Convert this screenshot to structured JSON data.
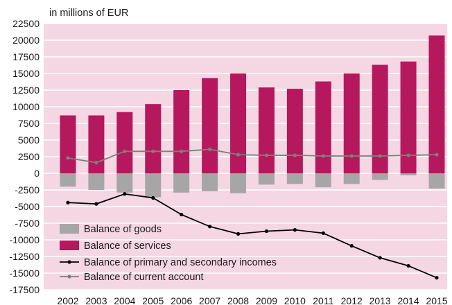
{
  "chart_data": {
    "type": "bar",
    "unit_label": "in millions of EUR",
    "categories": [
      "2002",
      "2003",
      "2004",
      "2005",
      "2006",
      "2007",
      "2008",
      "2009",
      "2010",
      "2011",
      "2012",
      "2013",
      "2014",
      "2015"
    ],
    "y_ticks": [
      "22500",
      "20000",
      "17500",
      "15000",
      "12500",
      "10000",
      "7500",
      "5000",
      "2500",
      "0",
      "-2500",
      "-5000",
      "-7500",
      "-10000",
      "-12500",
      "-15000",
      "-17500"
    ],
    "ylim": [
      -17500,
      22500
    ],
    "grid": true,
    "legend_position": "bottom-left",
    "series": [
      {
        "name": "Balance of goods",
        "kind": "bar",
        "color": "#a6a6a6",
        "values": [
          -2000,
          -2500,
          -2900,
          -3600,
          -2900,
          -2700,
          -3000,
          -1700,
          -1600,
          -2100,
          -1600,
          -1000,
          -300,
          -2300
        ]
      },
      {
        "name": "Balance of services",
        "kind": "bar",
        "color": "#b5185c",
        "values": [
          8700,
          8700,
          9200,
          10400,
          12500,
          14300,
          15000,
          12900,
          12700,
          13800,
          15000,
          16300,
          16800,
          20700
        ]
      },
      {
        "name": "Balance of primary and secondary incomes",
        "kind": "line",
        "color": "#000000",
        "values": [
          -4400,
          -4600,
          -3100,
          -3700,
          -6200,
          -8000,
          -9100,
          -8700,
          -8500,
          -9000,
          -10900,
          -12700,
          -13900,
          -15700
        ]
      },
      {
        "name": "Balance of current account",
        "kind": "line",
        "color": "#7f7f7f",
        "values": [
          2300,
          1600,
          3300,
          3300,
          3300,
          3600,
          2800,
          2700,
          2700,
          2600,
          2600,
          2600,
          2700,
          2800
        ]
      }
    ]
  }
}
